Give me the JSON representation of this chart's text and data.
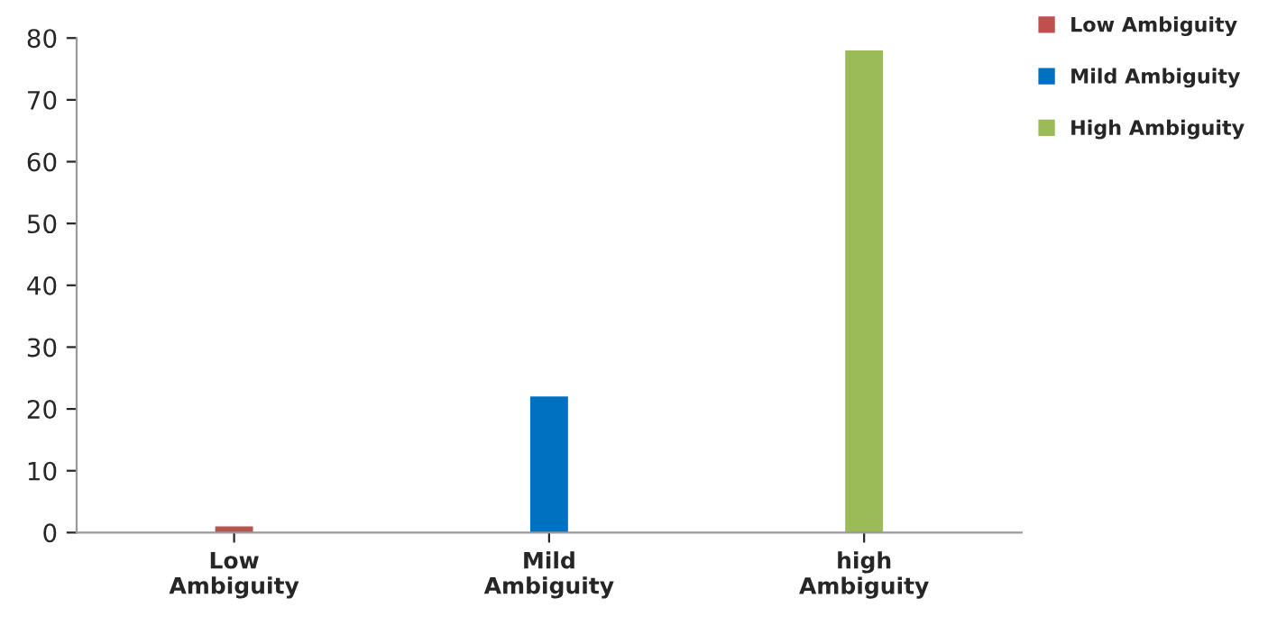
{
  "chart_data": {
    "type": "bar",
    "categories": [
      "Low\nAmbiguity",
      "Mild\nAmbiguity",
      "high\nAmbiguity"
    ],
    "series": [
      {
        "name": "Low Ambiguity",
        "color": "#c0504d",
        "values": [
          1,
          null,
          null
        ]
      },
      {
        "name": "Mild Ambiguity",
        "color": "#0070c0",
        "values": [
          null,
          22,
          null
        ]
      },
      {
        "name": "High Ambiguity",
        "color": "#9bbb59",
        "values": [
          null,
          null,
          78
        ]
      }
    ],
    "ylim": [
      0,
      80
    ],
    "yticks": [
      0,
      10,
      20,
      30,
      40,
      50,
      60,
      70,
      80
    ],
    "grid": false,
    "legend": "top right"
  }
}
